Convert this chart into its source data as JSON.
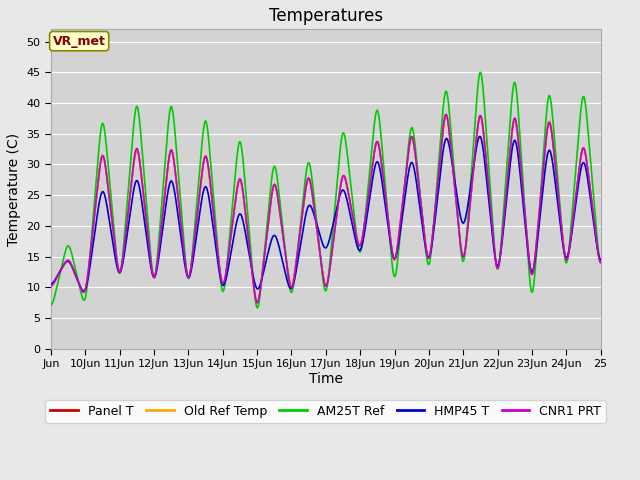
{
  "title": "Temperatures",
  "xlabel": "Time",
  "ylabel": "Temperature (C)",
  "annotation": "VR_met",
  "ylim": [
    0,
    52
  ],
  "yticks": [
    0,
    5,
    10,
    15,
    20,
    25,
    30,
    35,
    40,
    45,
    50
  ],
  "x_start": 9.0,
  "x_end": 25.0,
  "xtick_labels": [
    "Jun",
    "10Jun",
    "11Jun",
    "12Jun",
    "13Jun",
    "14Jun",
    "15Jun",
    "16Jun",
    "17Jun",
    "18Jun",
    "19Jun",
    "20Jun",
    "21Jun",
    "22Jun",
    "23Jun",
    "24Jun",
    "25"
  ],
  "xtick_positions": [
    9.0,
    10.0,
    11.0,
    12.0,
    13.0,
    14.0,
    15.0,
    16.0,
    17.0,
    18.0,
    19.0,
    20.0,
    21.0,
    22.0,
    23.0,
    24.0,
    25.0
  ],
  "legend_labels": [
    "Panel T",
    "Old Ref Temp",
    "AM25T Ref",
    "HMP45 T",
    "CNR1 PRT"
  ],
  "line_colors": [
    "#cc0000",
    "#ffaa00",
    "#00cc00",
    "#0000cc",
    "#cc00cc"
  ],
  "line_widths": [
    1.2,
    1.2,
    1.2,
    1.2,
    1.2
  ],
  "bg_color": "#e8e8e8",
  "plot_bg_color": "#d3d3d3",
  "grid_color": "#ffffff",
  "title_fontsize": 12,
  "label_fontsize": 10,
  "tick_fontsize": 8,
  "legend_fontsize": 9,
  "figwidth": 6.4,
  "figheight": 4.8,
  "dpi": 100
}
